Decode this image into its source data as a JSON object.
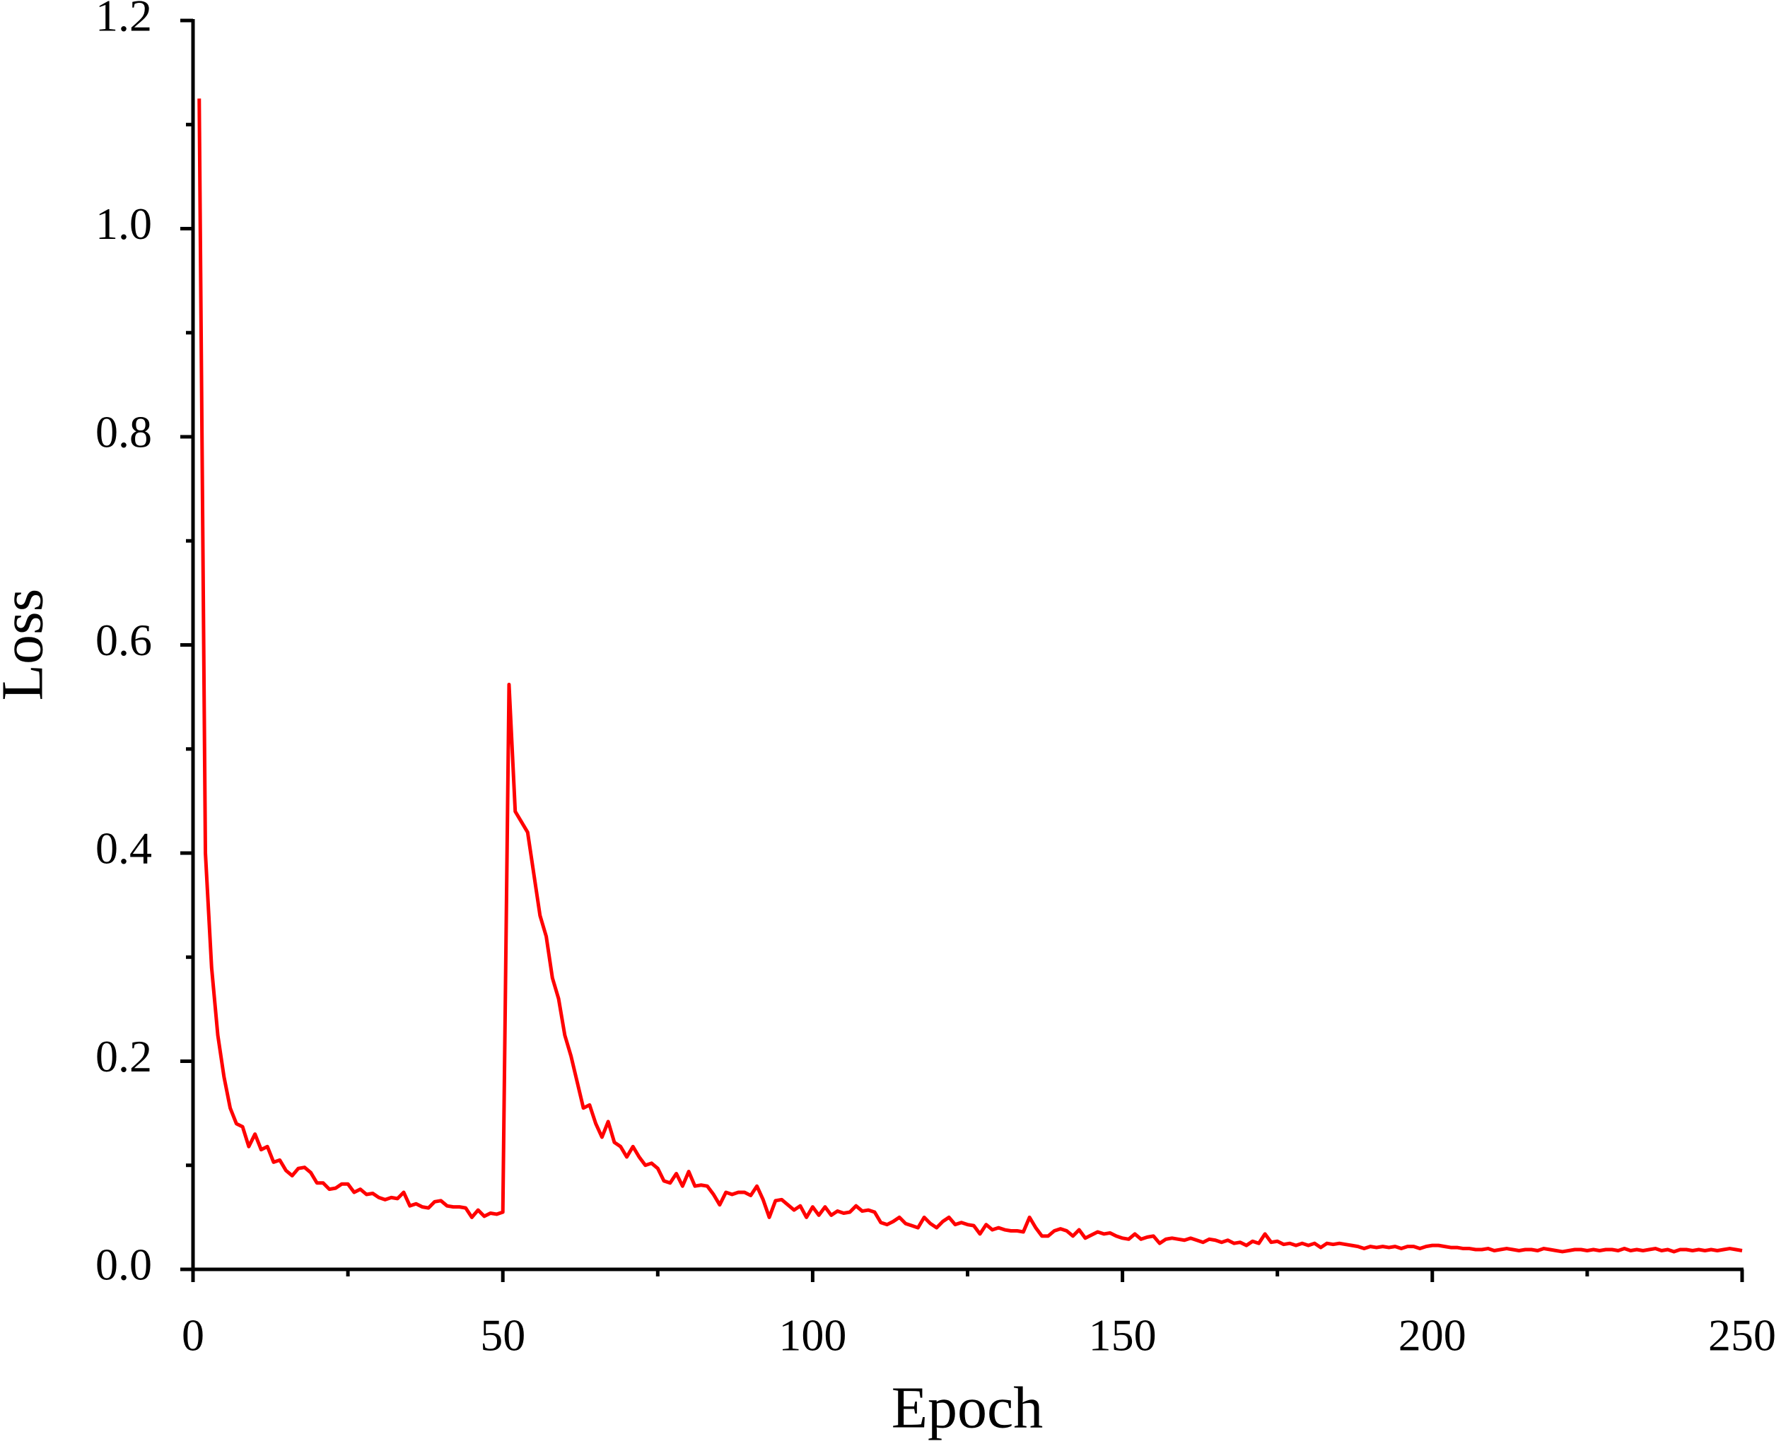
{
  "chart_data": {
    "type": "line",
    "xlabel": "Epoch",
    "ylabel": "Loss",
    "color": "#ff0000",
    "xlim": [
      0,
      250
    ],
    "xticks": [
      0,
      50,
      100,
      150,
      200,
      250
    ],
    "ylim": [
      0,
      1.2
    ],
    "yticks": [
      {
        "value": 0,
        "label": "0.0"
      },
      0.2,
      0.4,
      0.6,
      0.8,
      {
        "value": 1,
        "label": "1.0"
      },
      1.2
    ],
    "x": [
      1,
      2,
      3,
      4,
      5,
      6,
      7,
      8,
      9,
      10,
      11,
      12,
      13,
      14,
      15,
      16,
      17,
      18,
      19,
      20,
      21,
      22,
      23,
      24,
      25,
      26,
      27,
      28,
      29,
      30,
      31,
      32,
      33,
      34,
      35,
      36,
      37,
      38,
      39,
      40,
      41,
      42,
      43,
      44,
      45,
      46,
      47,
      48,
      49,
      50,
      51,
      52,
      53,
      54,
      55,
      56,
      57,
      58,
      59,
      60,
      61,
      62,
      63,
      64,
      65,
      66,
      67,
      68,
      69,
      70,
      71,
      72,
      73,
      74,
      75,
      76,
      77,
      78,
      79,
      80,
      81,
      82,
      83,
      84,
      85,
      86,
      87,
      88,
      89,
      90,
      91,
      92,
      93,
      94,
      95,
      96,
      97,
      98,
      99,
      100,
      101,
      102,
      103,
      104,
      105,
      106,
      107,
      108,
      109,
      110,
      111,
      112,
      113,
      114,
      115,
      116,
      117,
      118,
      119,
      120,
      121,
      122,
      123,
      124,
      125,
      126,
      127,
      128,
      129,
      130,
      131,
      132,
      133,
      134,
      135,
      136,
      137,
      138,
      139,
      140,
      141,
      142,
      143,
      144,
      145,
      146,
      147,
      148,
      149,
      150,
      151,
      152,
      153,
      154,
      155,
      156,
      157,
      158,
      159,
      160,
      161,
      162,
      163,
      164,
      165,
      166,
      167,
      168,
      169,
      170,
      171,
      172,
      173,
      174,
      175,
      176,
      177,
      178,
      179,
      180,
      181,
      182,
      183,
      184,
      185,
      186,
      187,
      188,
      189,
      190,
      191,
      192,
      193,
      194,
      195,
      196,
      197,
      198,
      199,
      200,
      201,
      202,
      203,
      204,
      205,
      206,
      207,
      208,
      209,
      210,
      211,
      212,
      213,
      214,
      215,
      216,
      217,
      218,
      219,
      220,
      221,
      222,
      223,
      224,
      225,
      226,
      227,
      228,
      229,
      230,
      231,
      232,
      233,
      234,
      235,
      236,
      237,
      238,
      239,
      240,
      241,
      242,
      243,
      244,
      245,
      246,
      247,
      248,
      249,
      250
    ],
    "values": [
      1.125,
      0.4,
      0.29,
      0.225,
      0.185,
      0.155,
      0.14,
      0.137,
      0.118,
      0.13,
      0.115,
      0.118,
      0.103,
      0.105,
      0.095,
      0.09,
      0.097,
      0.098,
      0.093,
      0.083,
      0.083,
      0.077,
      0.078,
      0.082,
      0.082,
      0.074,
      0.077,
      0.072,
      0.073,
      0.069,
      0.067,
      0.069,
      0.068,
      0.074,
      0.061,
      0.063,
      0.06,
      0.059,
      0.065,
      0.066,
      0.061,
      0.06,
      0.06,
      0.059,
      0.05,
      0.057,
      0.051,
      0.054,
      0.053,
      0.055,
      0.562,
      0.44,
      0.43,
      0.42,
      0.38,
      0.34,
      0.32,
      0.28,
      0.26,
      0.225,
      0.205,
      0.18,
      0.155,
      0.158,
      0.14,
      0.127,
      0.142,
      0.122,
      0.118,
      0.108,
      0.118,
      0.108,
      0.1,
      0.102,
      0.097,
      0.085,
      0.083,
      0.092,
      0.08,
      0.094,
      0.08,
      0.081,
      0.08,
      0.072,
      0.062,
      0.074,
      0.072,
      0.074,
      0.074,
      0.071,
      0.08,
      0.067,
      0.05,
      0.066,
      0.067,
      0.062,
      0.057,
      0.061,
      0.05,
      0.06,
      0.052,
      0.06,
      0.052,
      0.056,
      0.054,
      0.055,
      0.061,
      0.056,
      0.057,
      0.055,
      0.045,
      0.043,
      0.046,
      0.05,
      0.044,
      0.042,
      0.04,
      0.05,
      0.044,
      0.04,
      0.046,
      0.05,
      0.043,
      0.045,
      0.043,
      0.042,
      0.034,
      0.043,
      0.038,
      0.04,
      0.038,
      0.037,
      0.037,
      0.036,
      0.05,
      0.04,
      0.032,
      0.032,
      0.037,
      0.039,
      0.037,
      0.032,
      0.038,
      0.03,
      0.033,
      0.036,
      0.034,
      0.035,
      0.032,
      0.03,
      0.029,
      0.034,
      0.029,
      0.031,
      0.032,
      0.025,
      0.029,
      0.03,
      0.029,
      0.028,
      0.03,
      0.028,
      0.026,
      0.029,
      0.028,
      0.026,
      0.028,
      0.025,
      0.026,
      0.023,
      0.027,
      0.025,
      0.034,
      0.026,
      0.027,
      0.024,
      0.025,
      0.023,
      0.025,
      0.023,
      0.025,
      0.021,
      0.025,
      0.024,
      0.025,
      0.024,
      0.023,
      0.022,
      0.02,
      0.022,
      0.021,
      0.022,
      0.021,
      0.022,
      0.02,
      0.022,
      0.022,
      0.02,
      0.022,
      0.023,
      0.023,
      0.022,
      0.021,
      0.021,
      0.02,
      0.02,
      0.019,
      0.019,
      0.02,
      0.018,
      0.019,
      0.02,
      0.019,
      0.018,
      0.019,
      0.019,
      0.018,
      0.02,
      0.019,
      0.018,
      0.017,
      0.018,
      0.019,
      0.019,
      0.018,
      0.019,
      0.018,
      0.019,
      0.019,
      0.018,
      0.02,
      0.018,
      0.019,
      0.018,
      0.019,
      0.02,
      0.018,
      0.019,
      0.017,
      0.019,
      0.019,
      0.018,
      0.019,
      0.018,
      0.019,
      0.018,
      0.019,
      0.02,
      0.019,
      0.018
    ]
  }
}
